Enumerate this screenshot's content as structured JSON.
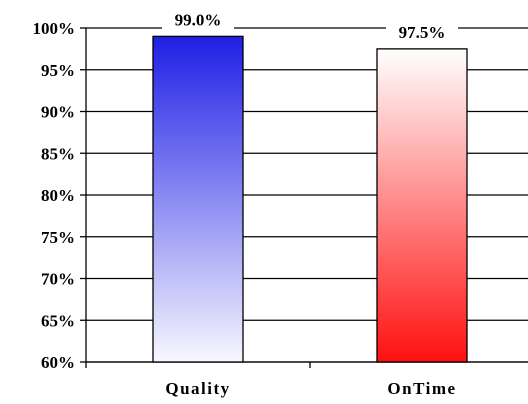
{
  "chart_data": {
    "type": "bar",
    "categories": [
      "Quality",
      "OnTime"
    ],
    "values": [
      99.0,
      97.5
    ],
    "data_labels": [
      "99.0%",
      "97.5%"
    ],
    "ylim": [
      60,
      100
    ],
    "y_ticks": [
      60,
      65,
      70,
      75,
      80,
      85,
      90,
      95,
      100
    ],
    "y_tick_labels": [
      "60%",
      "65%",
      "70%",
      "75%",
      "80%",
      "85%",
      "90%",
      "95%",
      "100%"
    ],
    "grid": true,
    "legend": "none",
    "bar_colors": [
      {
        "top": "#1f1fe6",
        "bottom": "#f8f8ff"
      },
      {
        "top": "#ffffff",
        "bottom": "#ff1010"
      }
    ]
  }
}
